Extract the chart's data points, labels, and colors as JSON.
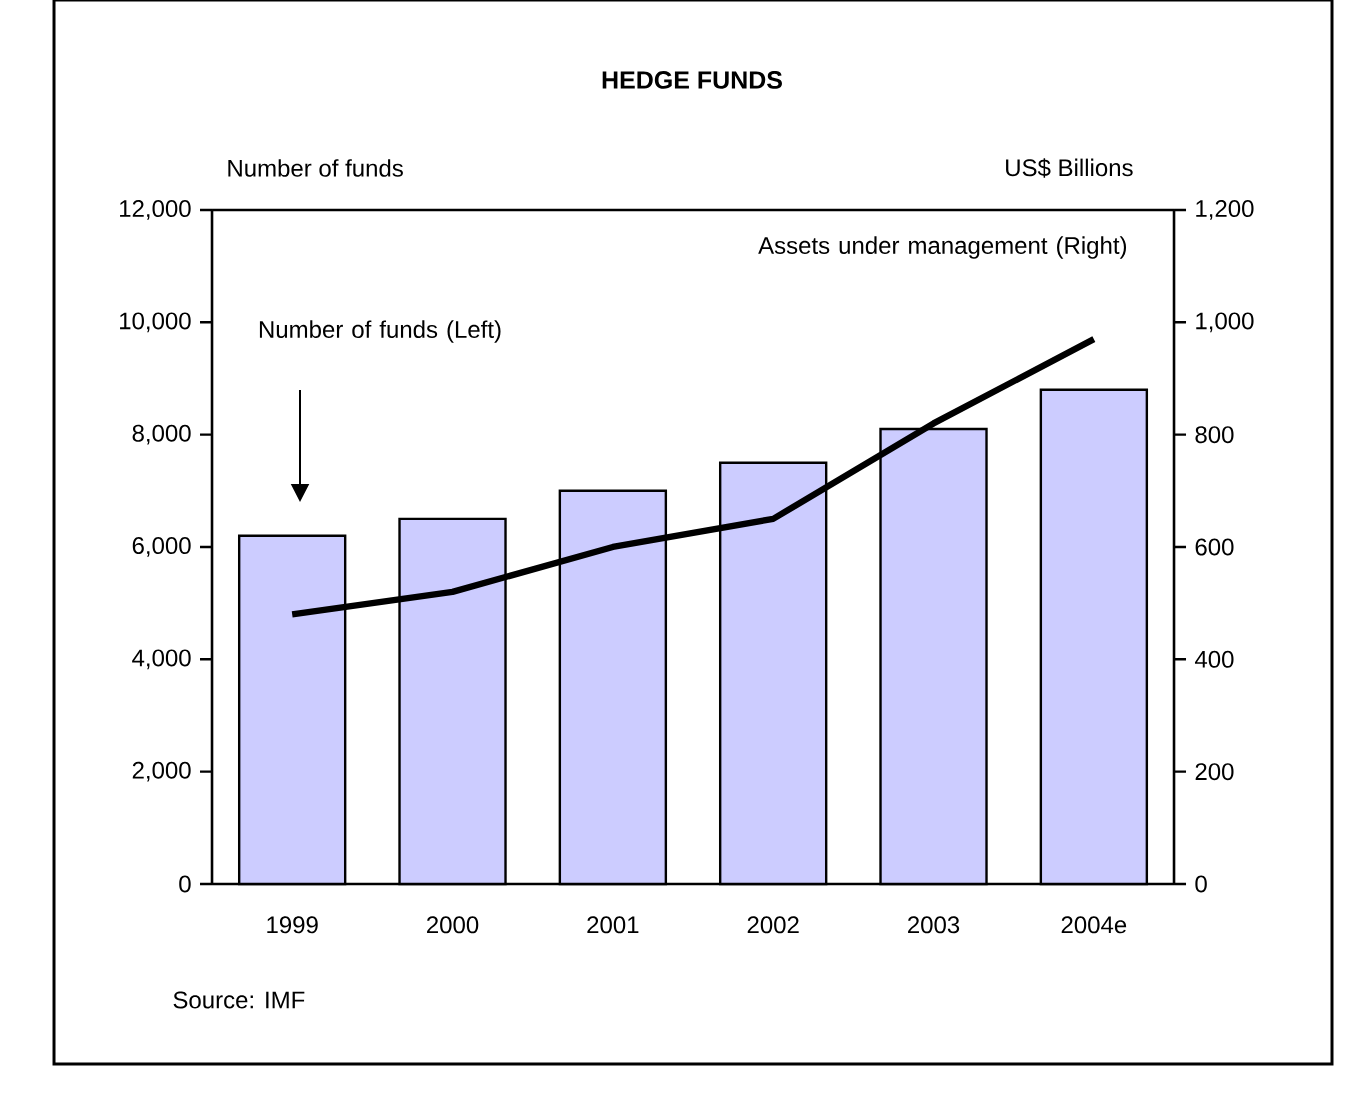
{
  "chart_data": {
    "type": "bar",
    "title": "HEDGE FUNDS",
    "ylabel": "Number of funds",
    "y2label": "US$ Billions",
    "categories": [
      "1999",
      "2000",
      "2001",
      "2002",
      "2003",
      "2004e"
    ],
    "series": [
      {
        "color": "#ccccff",
        "values": [
          6200,
          6500,
          7000,
          7500,
          8100,
          8800
        ]
      },
      {
        "type": "line",
        "axis": "y2",
        "color": "#000000",
        "values": [
          480,
          520,
          600,
          650,
          820,
          970
        ]
      }
    ],
    "ylim": [
      0,
      12000
    ],
    "yticks": [
      0,
      {
        "value": 2000,
        "label": "2,000"
      },
      {
        "value": 4000,
        "label": "4,000"
      },
      {
        "value": 6000,
        "label": "6,000"
      },
      {
        "value": 8000,
        "label": "8,000"
      },
      {
        "value": 10000,
        "label": "10,000"
      },
      {
        "value": 12000,
        "label": "12,000"
      }
    ],
    "y2lim": [
      0,
      1200
    ],
    "y2ticks": [
      0,
      200,
      400,
      600,
      800,
      {
        "value": 1000,
        "label": "1,000"
      },
      {
        "value": 1200,
        "label": "1,200"
      }
    ],
    "annotations": [
      "Number of funds (Left)",
      "Assets under management (Right)",
      "Source:  IMF"
    ],
    "grid": false,
    "marker": "none",
    "line_style": "solid"
  }
}
